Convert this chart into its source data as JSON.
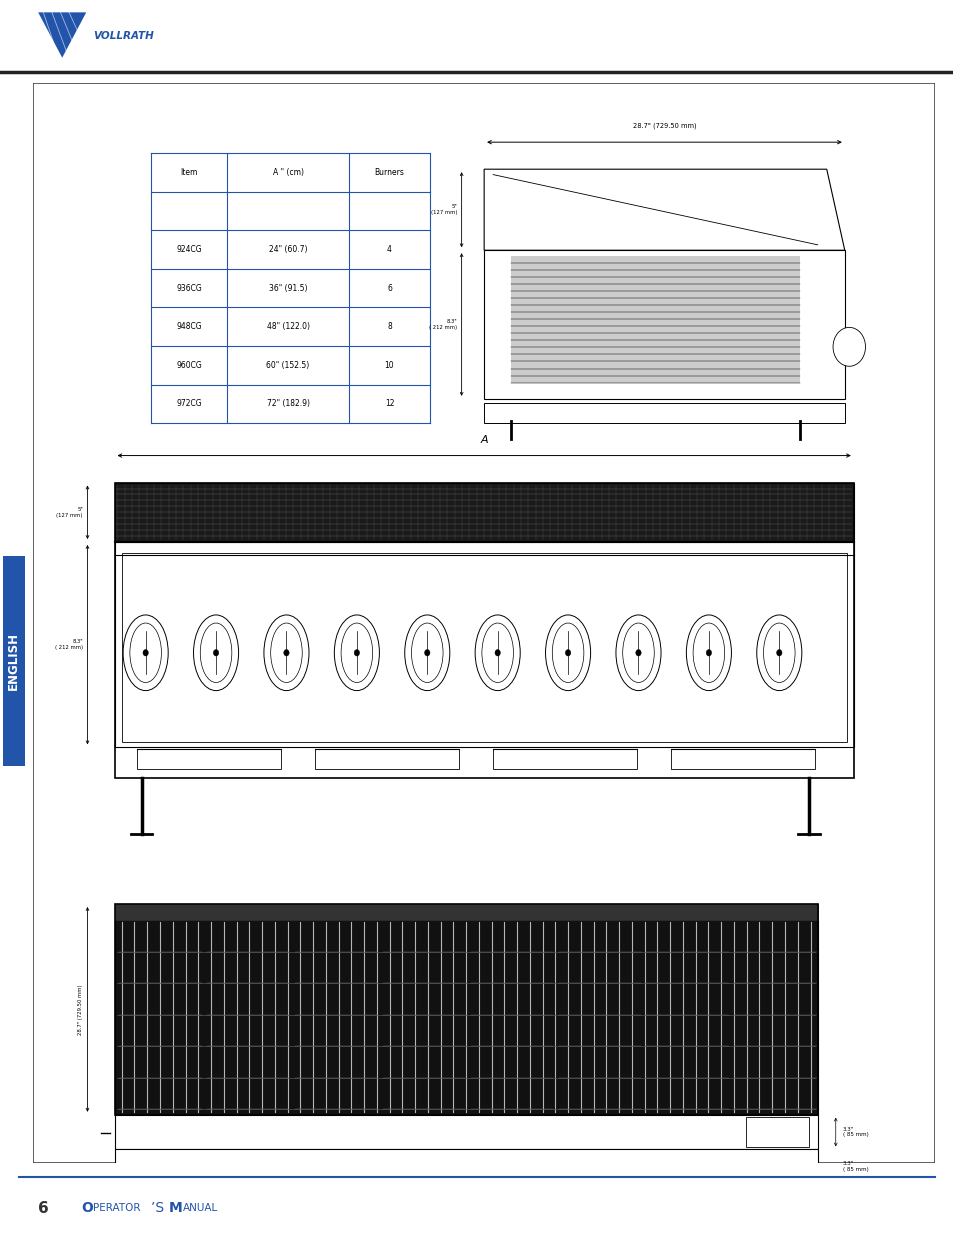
{
  "page_number": "6",
  "footer_text": "Operator’s Manual",
  "header_line_color": "#333333",
  "footer_line_color": "#2255aa",
  "logo_text": "VOLLRATH",
  "logo_color": "#2255aa",
  "main_border_color": "#555555",
  "english_tab_color": "#2255aa",
  "english_tab_text": "ENGLISH",
  "table_border_color": "#2255aa",
  "table_headers": [
    "Item",
    "A \" (cm)",
    "Burners"
  ],
  "table_rows": [
    [
      "924CG",
      "24\" (60.7)",
      "4"
    ],
    [
      "936CG",
      "36\" (91.5)",
      "6"
    ],
    [
      "948CG",
      "48\" (122.0)",
      "8"
    ],
    [
      "960CG",
      "60\" (152.5)",
      "10"
    ],
    [
      "972CG",
      "72\" (182.9)",
      "12"
    ]
  ],
  "dim_top_width": "28.7\" (729.50 mm)",
  "dim_depth": "28.7\" (729.50 mm)",
  "dim_83": "8.3\"\n( 212 mm)",
  "dim_5": "5\"\n(127 mm)",
  "dim_front_label": "A",
  "dim_33_top": "3.3\"\n( 85 mm)",
  "dim_33_bot": "3.3\"\n( 85 mm)"
}
